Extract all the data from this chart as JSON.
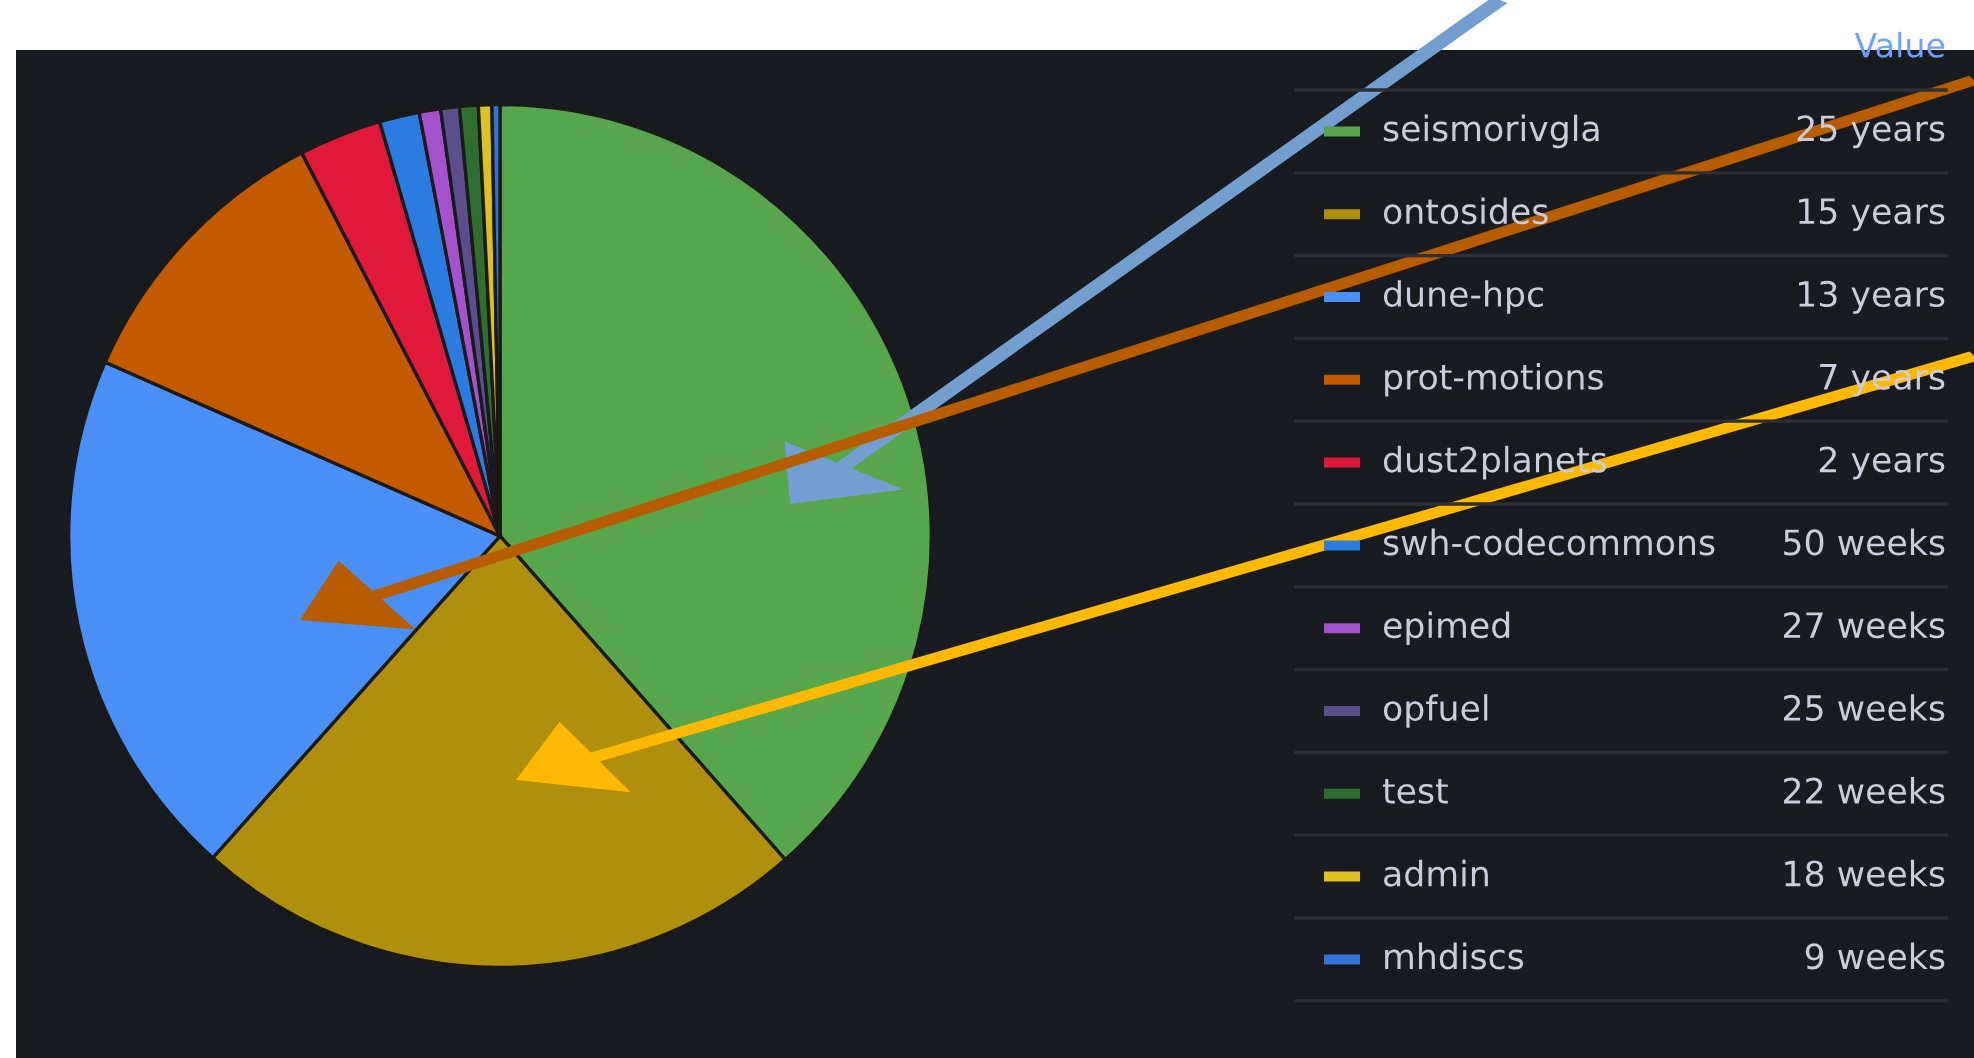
{
  "chart_data": {
    "type": "pie",
    "legend": "right",
    "legend_title": "Value",
    "categories": [
      "seismorivgla",
      "ontosides",
      "dune-hpc",
      "prot-motions",
      "dust2planets",
      "swh-codecommons",
      "epimed",
      "opfuel",
      "test",
      "admin",
      "mhdiscs"
    ],
    "values": [
      38.5,
      23.1,
      20.0,
      10.8,
      3.1,
      1.5,
      0.8,
      0.7,
      0.7,
      0.5,
      0.3
    ],
    "annotations": [
      "25 years",
      "15 years",
      "13 years",
      "7 years",
      "2 years",
      "50 weeks",
      "27 weeks",
      "25 weeks",
      "22 weeks",
      "18 weeks",
      "9 weeks"
    ],
    "colors": [
      "#56a64b",
      "#b08f0d",
      "#4a8ff5",
      "#c35a00",
      "#e0183a",
      "#2a7ce0",
      "#a352cc",
      "#5a4e8c",
      "#2f6e2f",
      "#e0c020",
      "#3274d9"
    ]
  }
}
